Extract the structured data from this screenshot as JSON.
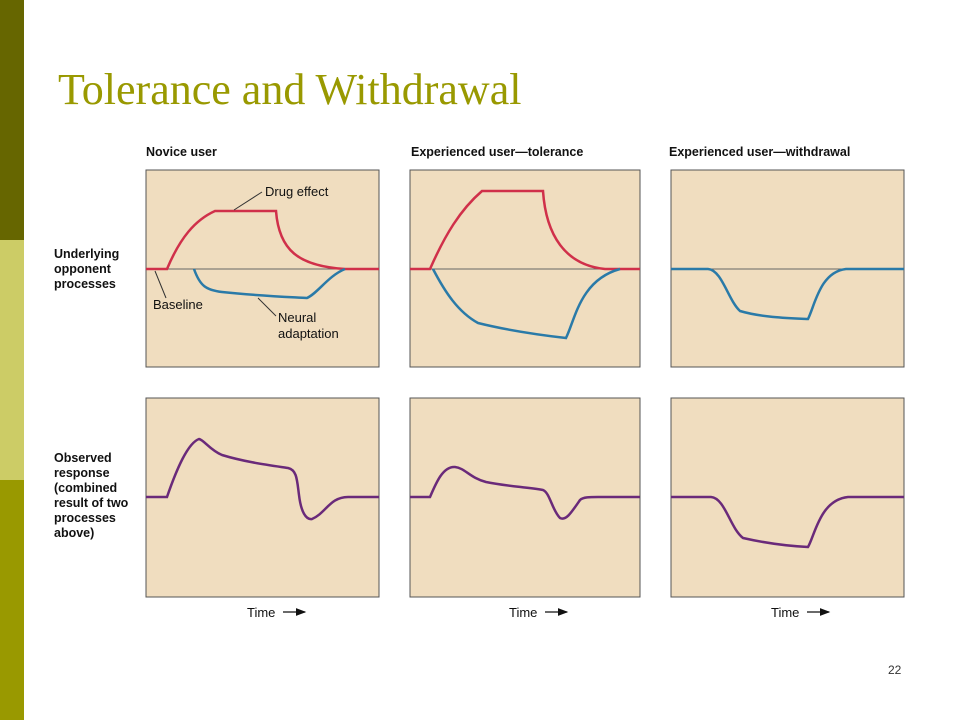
{
  "slide": {
    "title": "Tolerance and Withdrawal",
    "page_number": "22"
  },
  "colors": {
    "sidebar_dark": "#666600",
    "sidebar_light": "#CCCC66",
    "sidebar_mid": "#999900",
    "title": "#999900",
    "panel_fill": "#F0DDBF",
    "drug_effect_curve": "#D0304A",
    "neural_adaptation_curve": "#2A7AA8",
    "observed_response_curve": "#6A2A7A",
    "baseline": "#666666"
  },
  "figure": {
    "columns": [
      {
        "title": "Novice user"
      },
      {
        "title": "Experienced user—tolerance"
      },
      {
        "title": "Experienced user—withdrawal"
      }
    ],
    "rows": [
      {
        "label_lines": [
          "Underlying",
          "opponent",
          "processes"
        ]
      },
      {
        "label_lines": [
          "Observed",
          "response",
          "(combined",
          "result of two",
          "processes",
          "above)"
        ]
      }
    ],
    "annotations": {
      "drug_effect": "Drug effect",
      "baseline": "Baseline",
      "neural_adaptation_lines": [
        "Neural",
        "adaptation"
      ]
    },
    "x_axis_label": "Time"
  }
}
